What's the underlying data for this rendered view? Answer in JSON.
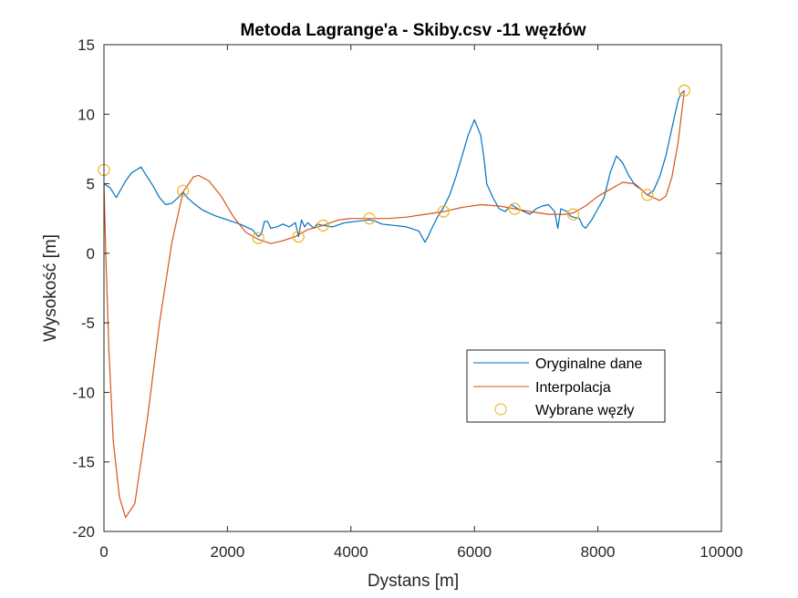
{
  "chart_data": {
    "type": "line",
    "title": "Metoda Lagrange'a - Skiby.csv -11 węzłów",
    "xlabel": "Dystans [m]",
    "ylabel": "Wysokość [m]",
    "xlim": [
      0,
      10000
    ],
    "ylim": [
      -20,
      15
    ],
    "xticks": [
      0,
      2000,
      4000,
      6000,
      8000,
      10000
    ],
    "xtick_labels": [
      "0",
      "2000",
      "4000",
      "6000",
      "8000",
      "10000"
    ],
    "yticks": [
      -20,
      -15,
      -10,
      -5,
      0,
      5,
      10,
      15
    ],
    "ytick_labels": [
      "-20",
      "-15",
      "-10",
      "-5",
      "0",
      "5",
      "10",
      "15"
    ],
    "grid": false,
    "legend_position": "lower-right",
    "colors": {
      "original": "#0072BD",
      "interpolation": "#D95319",
      "nodes": "#EDB120"
    },
    "series": [
      {
        "name": "Oryginalne dane",
        "style": "line",
        "x": [
          0,
          100,
          200,
          350,
          450,
          600,
          700,
          800,
          900,
          1000,
          1100,
          1200,
          1280,
          1350,
          1450,
          1600,
          1800,
          2000,
          2200,
          2400,
          2500,
          2550,
          2600,
          2650,
          2700,
          2800,
          2900,
          3000,
          3100,
          3150,
          3200,
          3250,
          3300,
          3400,
          3450,
          3550,
          3700,
          3900,
          4100,
          4300,
          4400,
          4500,
          4700,
          4900,
          5100,
          5200,
          5250,
          5300,
          5400,
          5500,
          5600,
          5700,
          5800,
          5900,
          6000,
          6100,
          6150,
          6200,
          6300,
          6400,
          6500,
          6600,
          6700,
          6800,
          6900,
          7000,
          7100,
          7200,
          7300,
          7350,
          7400,
          7500,
          7550,
          7600,
          7700,
          7750,
          7800,
          7900,
          8000,
          8100,
          8200,
          8300,
          8400,
          8500,
          8600,
          8700,
          8800,
          8900,
          9000,
          9100,
          9200,
          9300,
          9350,
          9400
        ],
        "y": [
          5.0,
          4.7,
          4.0,
          5.2,
          5.8,
          6.2,
          5.5,
          4.8,
          4.0,
          3.5,
          3.6,
          4.0,
          4.4,
          4.0,
          3.6,
          3.1,
          2.7,
          2.4,
          2.1,
          1.7,
          1.2,
          1.4,
          2.3,
          2.3,
          1.8,
          1.9,
          2.1,
          1.9,
          2.2,
          1.2,
          2.4,
          1.9,
          2.2,
          1.8,
          2.1,
          2.0,
          1.9,
          2.2,
          2.3,
          2.4,
          2.3,
          2.1,
          2.0,
          1.9,
          1.6,
          0.8,
          1.2,
          1.7,
          2.6,
          3.3,
          4.2,
          5.5,
          7.0,
          8.5,
          9.6,
          8.5,
          7.0,
          5.0,
          4.0,
          3.2,
          3.0,
          3.5,
          3.2,
          3.0,
          2.8,
          3.2,
          3.4,
          3.5,
          3.0,
          1.8,
          3.2,
          3.0,
          2.7,
          2.6,
          2.5,
          2.0,
          1.8,
          2.4,
          3.2,
          4.0,
          5.8,
          7.0,
          6.5,
          5.6,
          4.9,
          4.6,
          4.2,
          4.5,
          5.5,
          7.0,
          9.0,
          11.0,
          11.5,
          11.7
        ]
      },
      {
        "name": "Interpolacja",
        "style": "line",
        "x": [
          0,
          30,
          80,
          150,
          250,
          350,
          500,
          700,
          900,
          1100,
          1280,
          1450,
          1530,
          1700,
          1900,
          2100,
          2300,
          2500,
          2700,
          2900,
          3100,
          3300,
          3550,
          3800,
          4000,
          4300,
          4600,
          4900,
          5200,
          5500,
          5800,
          6100,
          6400,
          6650,
          6900,
          7200,
          7450,
          7600,
          7800,
          8000,
          8200,
          8400,
          8600,
          8800,
          9000,
          9100,
          9200,
          9300,
          9400
        ],
        "y": [
          5.0,
          0.0,
          -7.0,
          -13.5,
          -17.5,
          -19.0,
          -18.0,
          -12.0,
          -5.0,
          0.8,
          4.4,
          5.5,
          5.6,
          5.2,
          4.1,
          2.6,
          1.5,
          1.0,
          0.7,
          0.9,
          1.2,
          1.7,
          2.0,
          2.4,
          2.5,
          2.5,
          2.5,
          2.6,
          2.8,
          3.0,
          3.3,
          3.5,
          3.4,
          3.2,
          3.0,
          2.8,
          2.8,
          2.9,
          3.4,
          4.1,
          4.6,
          5.1,
          5.0,
          4.2,
          3.8,
          4.1,
          5.5,
          8.0,
          11.7
        ]
      },
      {
        "name": "Wybrane węzły",
        "style": "markers",
        "x": [
          0,
          1280,
          2500,
          3150,
          3550,
          4300,
          5500,
          6650,
          7600,
          8800,
          9400
        ],
        "y": [
          6.0,
          4.5,
          1.1,
          1.2,
          2.0,
          2.5,
          3.0,
          3.2,
          2.8,
          4.2,
          11.7
        ]
      }
    ]
  }
}
